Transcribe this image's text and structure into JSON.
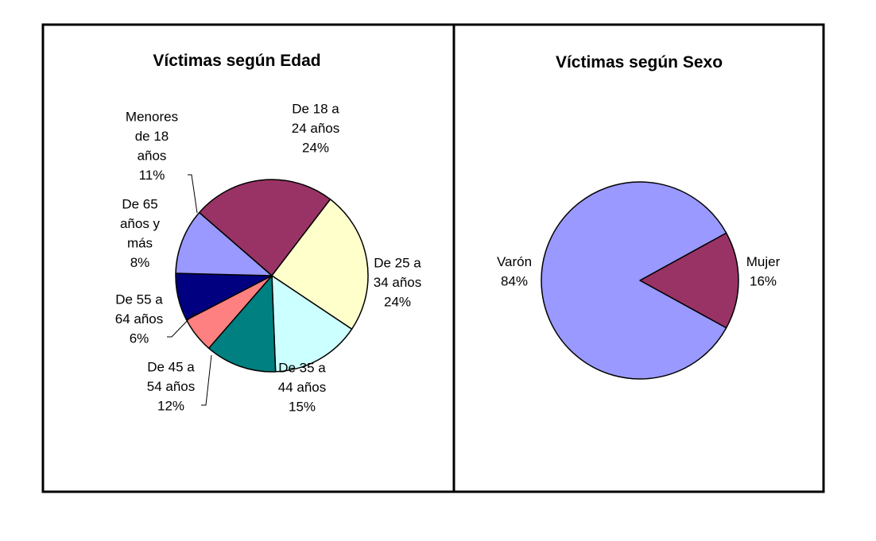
{
  "chart_data": [
    {
      "type": "pie",
      "title": "Víctimas según Edad",
      "slices": [
        {
          "label_lines": [
            "De 18 a",
            "24 años",
            "24%"
          ],
          "value": 24,
          "color": "#993366"
        },
        {
          "label_lines": [
            "De 25 a",
            "34 años",
            "24%"
          ],
          "value": 24,
          "color": "#FFFFCC"
        },
        {
          "label_lines": [
            "De 35 a",
            "44 años",
            "15%"
          ],
          "value": 15,
          "color": "#CCFFFF"
        },
        {
          "label_lines": [
            "De 45 a",
            "54 años",
            "12%"
          ],
          "value": 12,
          "color": "#008080"
        },
        {
          "label_lines": [
            "De 55 a",
            "64 años",
            "6%"
          ],
          "value": 6,
          "color": "#FF8080"
        },
        {
          "label_lines": [
            "De 65",
            "años y",
            "más",
            "8%"
          ],
          "value": 8,
          "color": "#000080"
        },
        {
          "label_lines": [
            "Menores",
            "de 18",
            "años",
            "11%"
          ],
          "value": 11,
          "color": "#9999FF"
        }
      ]
    },
    {
      "type": "pie",
      "title": "Víctimas según Sexo",
      "slices": [
        {
          "label_lines": [
            "Mujer",
            "16%"
          ],
          "value": 16,
          "color": "#993366"
        },
        {
          "label_lines": [
            "Varón",
            "84%"
          ],
          "value": 84,
          "color": "#9999FF"
        }
      ]
    }
  ]
}
